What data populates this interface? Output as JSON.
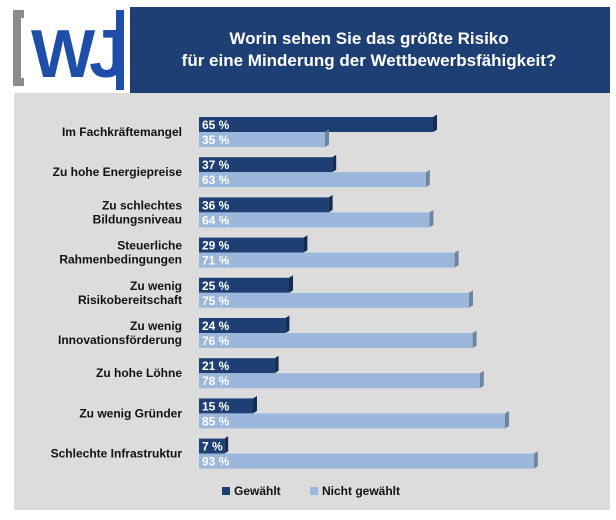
{
  "header": {
    "logo_text": "WJ",
    "title_line1": "Worin sehen Sie das größte Risiko",
    "title_line2": "für eine Minderung der Wettbewerbsfähigkeit?"
  },
  "colors": {
    "header_bg": "#1e3f73",
    "chart_bg": "#dcdcdc",
    "gewaehlt": "#1e3f73",
    "nicht_gewaehlt": "#9bb8dc",
    "logo_grey": "#8c8c8c",
    "logo_blue": "#1e4ea8"
  },
  "chart_data": {
    "type": "bar",
    "orientation": "horizontal",
    "categories": [
      [
        "Im Fachkräftemangel"
      ],
      [
        "Zu hohe Energiepreise"
      ],
      [
        "Zu schlechtes",
        "Bildungsniveau"
      ],
      [
        "Steuerliche",
        "Rahmenbedingungen"
      ],
      [
        "Zu wenig",
        "Risikobereitschaft"
      ],
      [
        "Zu wenig",
        "Innovationsförderung"
      ],
      [
        "Zu hohe Löhne"
      ],
      [
        "Zu wenig Gründer"
      ],
      [
        "Schlechte Infrastruktur"
      ]
    ],
    "series": [
      {
        "name": "Gewählt",
        "values": [
          65,
          37,
          36,
          29,
          25,
          24,
          21,
          15,
          7
        ]
      },
      {
        "name": "Nicht gewählt",
        "values": [
          35,
          63,
          64,
          71,
          75,
          76,
          78,
          85,
          93
        ]
      }
    ],
    "unit": "%",
    "xlim": [
      0,
      100
    ],
    "legend": "bottom-center",
    "grid": false
  }
}
